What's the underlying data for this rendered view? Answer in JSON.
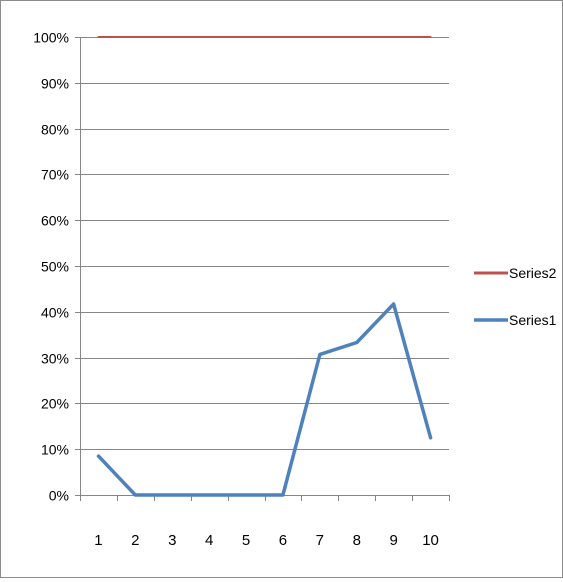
{
  "chart_data": {
    "type": "line",
    "title": "",
    "xlabel": "",
    "ylabel": "",
    "categories": [
      "1",
      "2",
      "3",
      "4",
      "5",
      "6",
      "7",
      "8",
      "9",
      "10"
    ],
    "ylim": [
      0,
      1
    ],
    "y_ticks": [
      0,
      0.1,
      0.2,
      0.3,
      0.4,
      0.5,
      0.6,
      0.7,
      0.8,
      0.9,
      1.0
    ],
    "y_tick_labels": [
      "0%",
      "10%",
      "20%",
      "30%",
      "40%",
      "50%",
      "60%",
      "70%",
      "80%",
      "90%",
      "100%"
    ],
    "grid": true,
    "legend_position": "right",
    "series": [
      {
        "name": "Series1",
        "color": "#4f81bd",
        "values": [
          0.085,
          0.0,
          0.0,
          0.0,
          0.0,
          0.0,
          0.307,
          0.333,
          0.417,
          0.125
        ]
      },
      {
        "name": "Series2",
        "color": "#c0504d",
        "values": [
          1.0,
          1.0,
          1.0,
          1.0,
          1.0,
          1.0,
          1.0,
          1.0,
          1.0,
          1.0
        ]
      }
    ],
    "legend_order": [
      "Series2",
      "Series1"
    ]
  }
}
